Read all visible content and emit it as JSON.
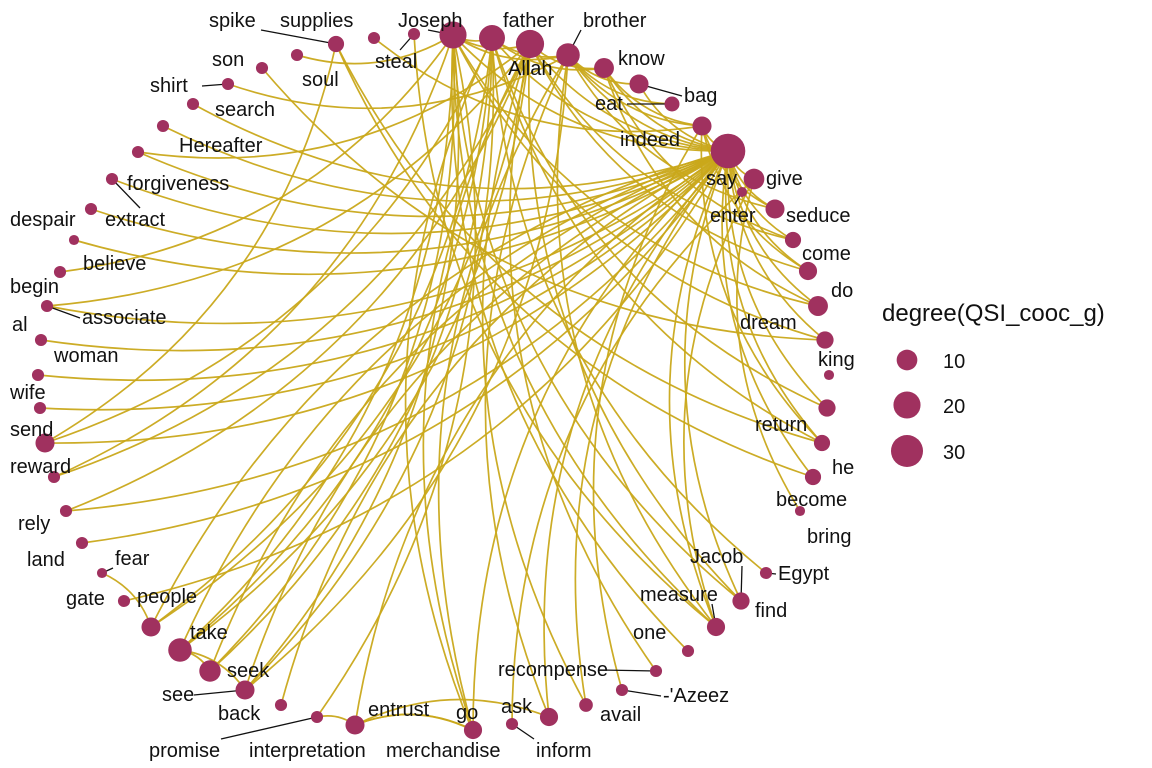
{
  "colors": {
    "edge": "#C9A81A",
    "node": "#A0315F",
    "leader": "#111111"
  },
  "legend": {
    "title": "degree(QSI_cooc_g)",
    "entries": [
      {
        "label": "10",
        "degree": 10
      },
      {
        "label": "20",
        "degree": 20
      },
      {
        "label": "30",
        "degree": 30
      }
    ]
  },
  "nodes": [
    {
      "id": "say",
      "label": "say",
      "degree": 36
    },
    {
      "id": "give",
      "label": "give",
      "degree": 10
    },
    {
      "id": "enter",
      "label": "enter",
      "degree": 1
    },
    {
      "id": "seduce",
      "label": "seduce",
      "degree": 8
    },
    {
      "id": "come",
      "label": "come",
      "degree": 5
    },
    {
      "id": "do",
      "label": "do",
      "degree": 7
    },
    {
      "id": "dream",
      "label": "dream",
      "degree": 9
    },
    {
      "id": "king",
      "label": "king",
      "degree": 6
    },
    {
      "id": "return",
      "label": "return",
      "degree": 1
    },
    {
      "id": "return_n",
      "label": "",
      "degree": 6
    },
    {
      "id": "he",
      "label": "he",
      "degree": 5
    },
    {
      "id": "become",
      "label": "become",
      "degree": 5
    },
    {
      "id": "bring",
      "label": "bring",
      "degree": 1
    },
    {
      "id": "egypt",
      "label": "Egypt",
      "degree": 2
    },
    {
      "id": "jacob",
      "label": "Jacob",
      "degree": 1
    },
    {
      "id": "find",
      "label": "find",
      "degree": 6
    },
    {
      "id": "measure",
      "label": "measure",
      "degree": 7
    },
    {
      "id": "one",
      "label": "one",
      "degree": 2
    },
    {
      "id": "recompense",
      "label": "recompense",
      "degree": 2
    },
    {
      "id": "azeez",
      "label": "-'Azeez",
      "degree": 2
    },
    {
      "id": "avail",
      "label": "avail",
      "degree": 3
    },
    {
      "id": "ask",
      "label": "ask",
      "degree": 7
    },
    {
      "id": "inform",
      "label": "inform",
      "degree": 2
    },
    {
      "id": "go",
      "label": "go",
      "degree": 7
    },
    {
      "id": "merchandise",
      "label": "merchandise",
      "degree": 1
    },
    {
      "id": "entrust",
      "label": "entrust",
      "degree": 8
    },
    {
      "id": "interpretation",
      "label": "interpretation",
      "degree": 2
    },
    {
      "id": "promise",
      "label": "promise",
      "degree": 1
    },
    {
      "id": "back",
      "label": "back",
      "degree": 2
    },
    {
      "id": "see",
      "label": "see",
      "degree": 8
    },
    {
      "id": "seek",
      "label": "seek",
      "degree": 11
    },
    {
      "id": "take",
      "label": "take",
      "degree": 14
    },
    {
      "id": "people",
      "label": "people",
      "degree": 8
    },
    {
      "id": "gate",
      "label": "gate",
      "degree": 2
    },
    {
      "id": "fear",
      "label": "fear",
      "degree": 1
    },
    {
      "id": "land",
      "label": "land",
      "degree": 2
    },
    {
      "id": "rely",
      "label": "rely",
      "degree": 2
    },
    {
      "id": "reward",
      "label": "reward",
      "degree": 2
    },
    {
      "id": "send",
      "label": "send",
      "degree": 8
    },
    {
      "id": "wife",
      "label": "wife",
      "degree": 2
    },
    {
      "id": "woman",
      "label": "woman",
      "degree": 2
    },
    {
      "id": "al",
      "label": "al",
      "degree": 2
    },
    {
      "id": "associate",
      "label": "associate",
      "degree": 2
    },
    {
      "id": "begin",
      "label": "begin",
      "degree": 2
    },
    {
      "id": "believe",
      "label": "believe",
      "degree": 1
    },
    {
      "id": "despair",
      "label": "despair",
      "degree": 2
    },
    {
      "id": "extract",
      "label": "extract",
      "degree": 2
    },
    {
      "id": "forgiveness",
      "label": "forgiveness",
      "degree": 2
    },
    {
      "id": "hereafter",
      "label": "Hereafter",
      "degree": 2
    },
    {
      "id": "search",
      "label": "search",
      "degree": 2
    },
    {
      "id": "shirt",
      "label": "shirt",
      "degree": 2
    },
    {
      "id": "son",
      "label": "son",
      "degree": 2
    },
    {
      "id": "soul",
      "label": "soul",
      "degree": 2
    },
    {
      "id": "spike",
      "label": "spike",
      "degree": 5
    },
    {
      "id": "supplies",
      "label": "supplies",
      "degree": 2
    },
    {
      "id": "steal",
      "label": "steal",
      "degree": 2
    },
    {
      "id": "joseph",
      "label": "Joseph",
      "degree": 20
    },
    {
      "id": "father",
      "label": "father",
      "degree": 18
    },
    {
      "id": "allah",
      "label": "Allah",
      "degree": 22
    },
    {
      "id": "brother",
      "label": "brother",
      "degree": 14
    },
    {
      "id": "know",
      "label": "know",
      "degree": 9
    },
    {
      "id": "bag",
      "label": "bag",
      "degree": 8
    },
    {
      "id": "eat",
      "label": "eat",
      "degree": 4
    },
    {
      "id": "indeed",
      "label": "indeed",
      "degree": 8
    }
  ],
  "edges": [
    [
      "say",
      "give"
    ],
    [
      "say",
      "seduce"
    ],
    [
      "say",
      "come"
    ],
    [
      "say",
      "do"
    ],
    [
      "say",
      "dream"
    ],
    [
      "say",
      "king"
    ],
    [
      "say",
      "return_n"
    ],
    [
      "say",
      "he"
    ],
    [
      "say",
      "become"
    ],
    [
      "say",
      "find"
    ],
    [
      "say",
      "measure"
    ],
    [
      "say",
      "avail"
    ],
    [
      "say",
      "ask"
    ],
    [
      "say",
      "go"
    ],
    [
      "say",
      "entrust"
    ],
    [
      "say",
      "back"
    ],
    [
      "say",
      "see"
    ],
    [
      "say",
      "seek"
    ],
    [
      "say",
      "take"
    ],
    [
      "say",
      "people"
    ],
    [
      "say",
      "gate"
    ],
    [
      "say",
      "send"
    ],
    [
      "say",
      "wife"
    ],
    [
      "say",
      "woman"
    ],
    [
      "say",
      "al"
    ],
    [
      "say",
      "associate"
    ],
    [
      "say",
      "believe"
    ],
    [
      "say",
      "despair"
    ],
    [
      "say",
      "forgiveness"
    ],
    [
      "say",
      "hereafter"
    ],
    [
      "say",
      "search"
    ],
    [
      "say",
      "joseph"
    ],
    [
      "say",
      "father"
    ],
    [
      "say",
      "allah"
    ],
    [
      "say",
      "brother"
    ],
    [
      "say",
      "know"
    ],
    [
      "say",
      "bag"
    ],
    [
      "say",
      "indeed"
    ],
    [
      "say",
      "land"
    ],
    [
      "say",
      "rely"
    ],
    [
      "say",
      "extract"
    ],
    [
      "joseph",
      "father"
    ],
    [
      "joseph",
      "brother"
    ],
    [
      "joseph",
      "allah"
    ],
    [
      "joseph",
      "dream"
    ],
    [
      "joseph",
      "take"
    ],
    [
      "joseph",
      "seek"
    ],
    [
      "joseph",
      "interpretation"
    ],
    [
      "joseph",
      "find"
    ],
    [
      "joseph",
      "measure"
    ],
    [
      "joseph",
      "king"
    ],
    [
      "joseph",
      "one"
    ],
    [
      "joseph",
      "soul"
    ],
    [
      "joseph",
      "begin"
    ],
    [
      "joseph",
      "reward"
    ],
    [
      "joseph",
      "see"
    ],
    [
      "father",
      "brother"
    ],
    [
      "father",
      "know"
    ],
    [
      "father",
      "take"
    ],
    [
      "father",
      "send"
    ],
    [
      "father",
      "return_n"
    ],
    [
      "father",
      "egypt"
    ],
    [
      "father",
      "he"
    ],
    [
      "father",
      "merchandise"
    ],
    [
      "father",
      "see"
    ],
    [
      "father",
      "seek"
    ],
    [
      "father",
      "people"
    ],
    [
      "allah",
      "know"
    ],
    [
      "allah",
      "come"
    ],
    [
      "allah",
      "do"
    ],
    [
      "allah",
      "forgiveness"
    ],
    [
      "allah",
      "avail"
    ],
    [
      "allah",
      "recompense"
    ],
    [
      "allah",
      "take"
    ],
    [
      "allah",
      "rely"
    ],
    [
      "allah",
      "reward"
    ],
    [
      "allah",
      "go"
    ],
    [
      "allah",
      "associate"
    ],
    [
      "allah",
      "jacob"
    ],
    [
      "allah",
      "people"
    ],
    [
      "brother",
      "bag"
    ],
    [
      "brother",
      "eat"
    ],
    [
      "brother",
      "indeed"
    ],
    [
      "brother",
      "measure"
    ],
    [
      "brother",
      "seduce"
    ],
    [
      "brother",
      "go"
    ],
    [
      "brother",
      "ask"
    ],
    [
      "brother",
      "shirt"
    ],
    [
      "brother",
      "see"
    ],
    [
      "know",
      "indeed"
    ],
    [
      "know",
      "dream"
    ],
    [
      "know",
      "come"
    ],
    [
      "indeed",
      "seduce"
    ],
    [
      "indeed",
      "do"
    ],
    [
      "indeed",
      "he"
    ],
    [
      "indeed",
      "azeez"
    ],
    [
      "give",
      "bring"
    ],
    [
      "give",
      "measure"
    ],
    [
      "give",
      "inform"
    ],
    [
      "entrust",
      "go"
    ],
    [
      "entrust",
      "merchandise"
    ],
    [
      "entrust",
      "ask"
    ],
    [
      "entrust",
      "promise"
    ],
    [
      "seek",
      "take"
    ],
    [
      "take",
      "see"
    ],
    [
      "people",
      "fear"
    ],
    [
      "son",
      "king"
    ],
    [
      "supplies",
      "indeed"
    ],
    [
      "steal",
      "measure"
    ],
    [
      "spike",
      "send"
    ],
    [
      "spike",
      "he"
    ],
    [
      "spike",
      "become"
    ]
  ]
}
